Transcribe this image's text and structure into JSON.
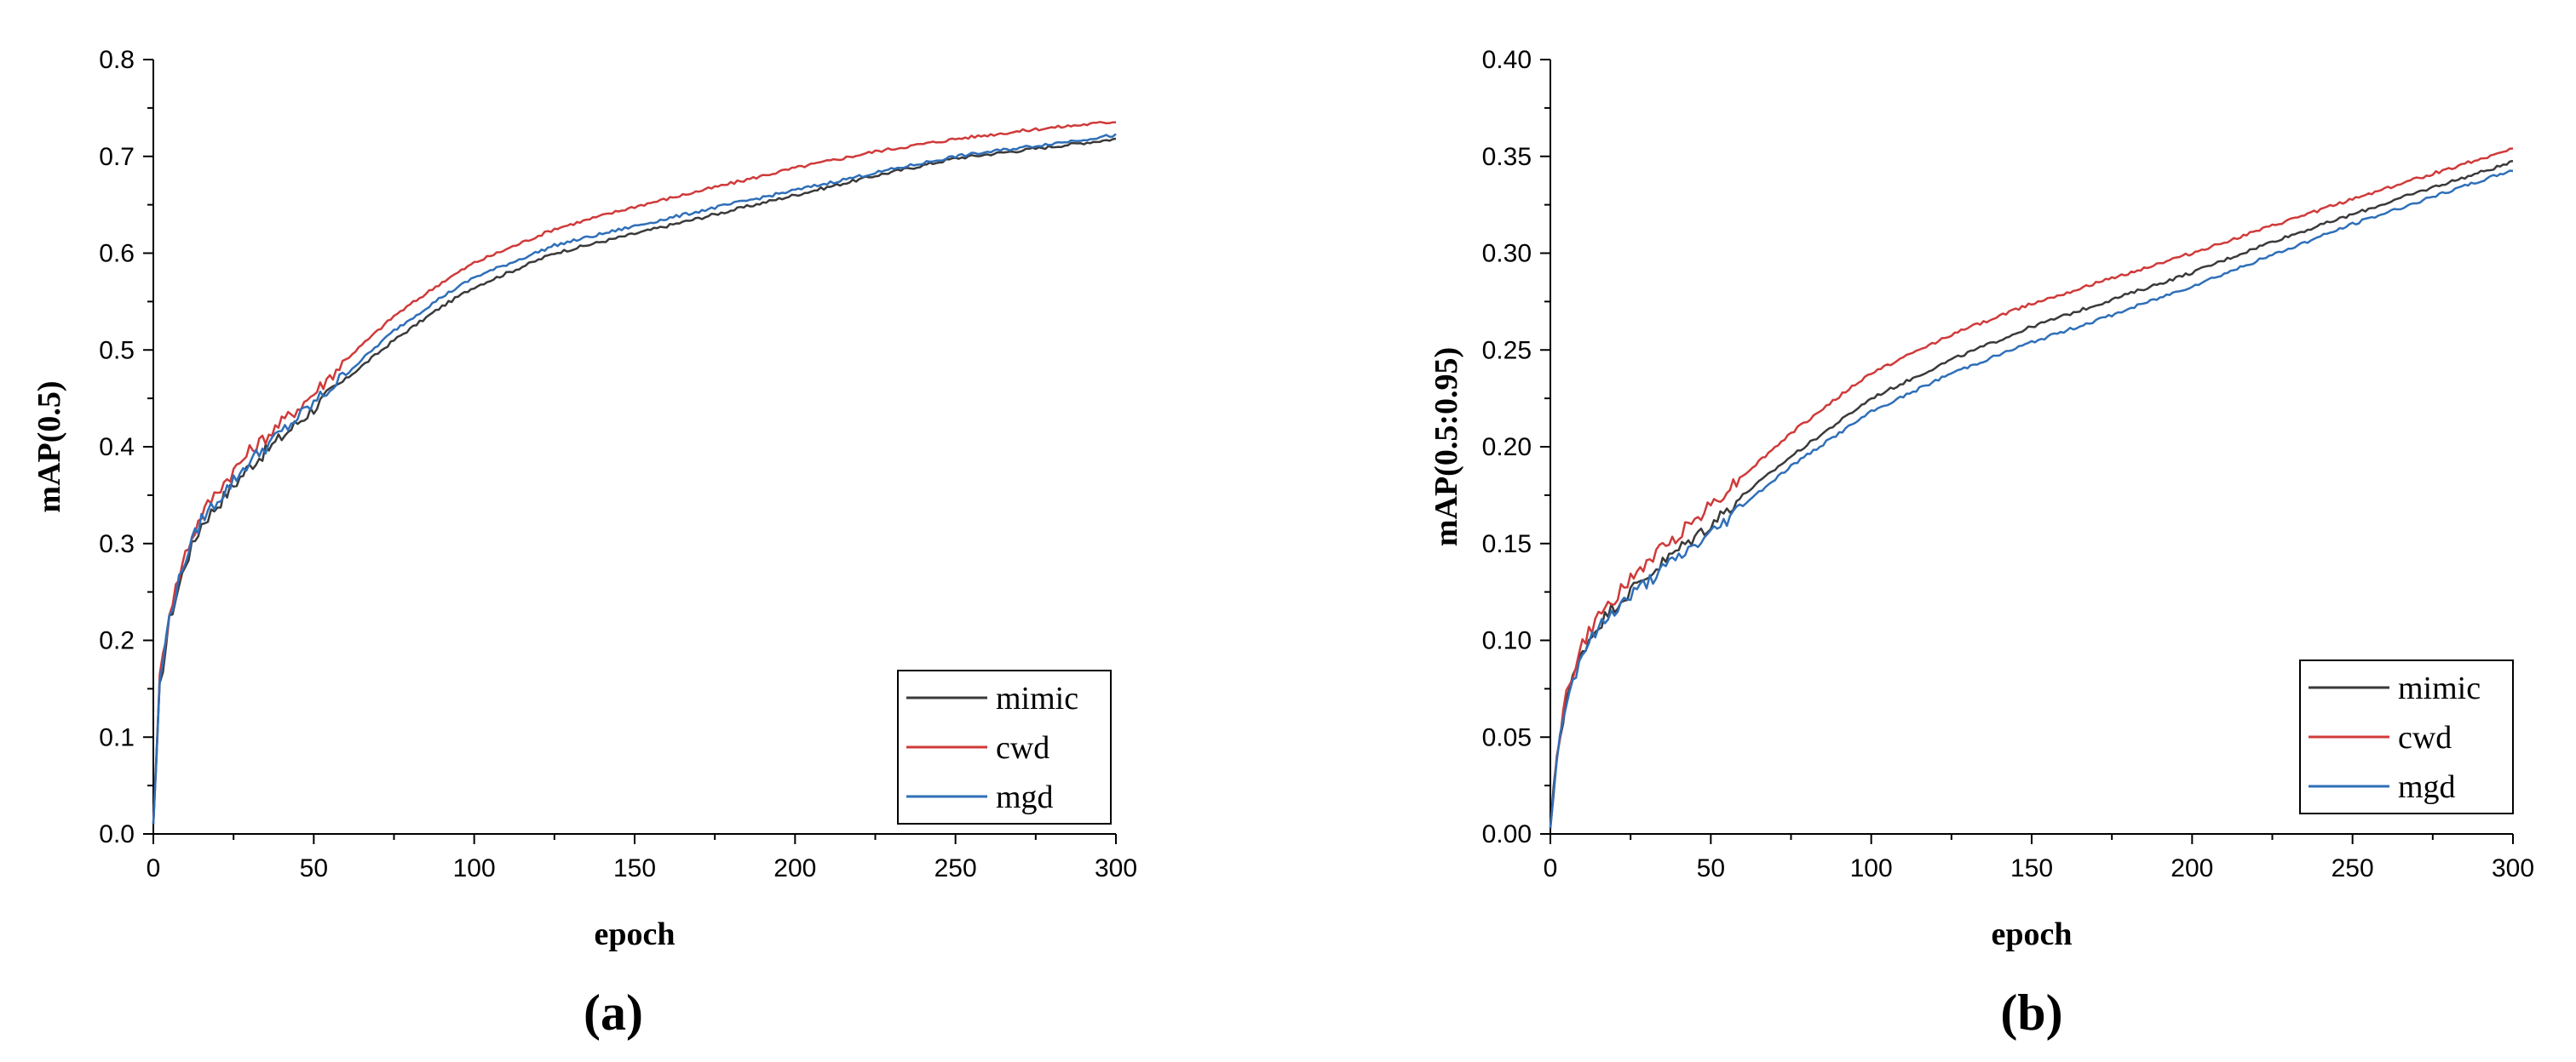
{
  "figure": {
    "background": "#ffffff"
  },
  "chart_data": [
    {
      "type": "line",
      "panel_label": "(a)",
      "xlabel": "epoch",
      "ylabel": "mAP(0.5)",
      "xlim": [
        0,
        300
      ],
      "ylim": [
        0,
        0.8
      ],
      "xticks": [
        0,
        50,
        100,
        150,
        200,
        250,
        300
      ],
      "xtick_labels": [
        "0",
        "50",
        "100",
        "150",
        "200",
        "250",
        "300"
      ],
      "yticks": [
        0,
        0.1,
        0.2,
        0.3,
        0.4,
        0.5,
        0.6,
        0.7,
        0.8
      ],
      "ytick_labels": [
        "0.0",
        "0.1",
        "0.2",
        "0.3",
        "0.4",
        "0.5",
        "0.6",
        "0.7",
        "0.8"
      ],
      "legend_position": "bottom-right",
      "x": [
        0,
        2,
        5,
        10,
        15,
        20,
        30,
        40,
        50,
        60,
        75,
        90,
        100,
        125,
        150,
        175,
        200,
        225,
        250,
        275,
        300
      ],
      "series": [
        {
          "name": "mimic",
          "color": "#3a3a3a",
          "values": [
            0.01,
            0.15,
            0.22,
            0.28,
            0.32,
            0.34,
            0.38,
            0.41,
            0.44,
            0.47,
            0.51,
            0.545,
            0.565,
            0.6,
            0.62,
            0.64,
            0.66,
            0.68,
            0.698,
            0.708,
            0.718
          ]
        },
        {
          "name": "cwd",
          "color": "#d03a3a",
          "values": [
            0.01,
            0.16,
            0.23,
            0.29,
            0.33,
            0.355,
            0.395,
            0.425,
            0.455,
            0.49,
            0.535,
            0.57,
            0.59,
            0.625,
            0.648,
            0.668,
            0.688,
            0.705,
            0.718,
            0.728,
            0.736
          ]
        },
        {
          "name": "mgd",
          "color": "#2f6fb8",
          "values": [
            0.01,
            0.155,
            0.225,
            0.285,
            0.325,
            0.345,
            0.385,
            0.415,
            0.445,
            0.475,
            0.52,
            0.555,
            0.575,
            0.608,
            0.628,
            0.647,
            0.665,
            0.683,
            0.7,
            0.711,
            0.722
          ]
        }
      ]
    },
    {
      "type": "line",
      "panel_label": "(b)",
      "xlabel": "epoch",
      "ylabel": "mAP(0.5:0.95)",
      "xlim": [
        0,
        300
      ],
      "ylim": [
        0,
        0.4
      ],
      "xticks": [
        0,
        50,
        100,
        150,
        200,
        250,
        300
      ],
      "xtick_labels": [
        "0",
        "50",
        "100",
        "150",
        "200",
        "250",
        "300"
      ],
      "yticks": [
        0,
        0.05,
        0.1,
        0.15,
        0.2,
        0.25,
        0.3,
        0.35,
        0.4
      ],
      "ytick_labels": [
        "0.00",
        "0.05",
        "0.10",
        "0.15",
        "0.20",
        "0.25",
        "0.30",
        "0.35",
        "0.40"
      ],
      "legend_position": "bottom-right",
      "x": [
        0,
        2,
        5,
        10,
        15,
        20,
        30,
        40,
        50,
        60,
        75,
        90,
        100,
        125,
        150,
        175,
        200,
        225,
        250,
        275,
        300
      ],
      "series": [
        {
          "name": "mimic",
          "color": "#3a3a3a",
          "values": [
            0.003,
            0.04,
            0.07,
            0.095,
            0.108,
            0.118,
            0.133,
            0.147,
            0.16,
            0.175,
            0.195,
            0.213,
            0.225,
            0.245,
            0.262,
            0.276,
            0.29,
            0.306,
            0.32,
            0.334,
            0.347
          ]
        },
        {
          "name": "cwd",
          "color": "#d03a3a",
          "values": [
            0.003,
            0.042,
            0.072,
            0.098,
            0.112,
            0.122,
            0.14,
            0.155,
            0.17,
            0.185,
            0.207,
            0.226,
            0.238,
            0.258,
            0.274,
            0.287,
            0.3,
            0.314,
            0.328,
            0.341,
            0.354
          ]
        },
        {
          "name": "mgd",
          "color": "#2f6fb8",
          "values": [
            0.003,
            0.04,
            0.069,
            0.094,
            0.106,
            0.116,
            0.13,
            0.143,
            0.155,
            0.17,
            0.19,
            0.207,
            0.218,
            0.238,
            0.254,
            0.268,
            0.283,
            0.299,
            0.315,
            0.329,
            0.343
          ]
        }
      ]
    }
  ]
}
